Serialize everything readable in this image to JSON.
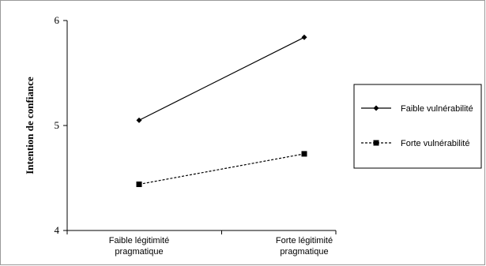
{
  "chart_data": {
    "type": "line",
    "title": "",
    "xlabel": "",
    "ylabel": "Intention de confiance",
    "categories": [
      "Faible légitimité pragmatique",
      "Forte légitimité pragmatique"
    ],
    "category_lines": [
      [
        "Faible légitimité",
        "pragmatique"
      ],
      [
        "Forte légitimité",
        "pragmatique"
      ]
    ],
    "ylim": [
      4,
      6
    ],
    "yticks": [
      "4",
      "5",
      "6"
    ],
    "grid": false,
    "legend_position": "right",
    "series": [
      {
        "name": "Faible vulnérabilité",
        "values": [
          5.05,
          5.84
        ],
        "line": "solid",
        "marker": "diamond",
        "color": "#000000"
      },
      {
        "name": "Forte vulnérabilité",
        "values": [
          4.44,
          4.73
        ],
        "line": "dashed",
        "marker": "square",
        "color": "#000000"
      }
    ]
  }
}
